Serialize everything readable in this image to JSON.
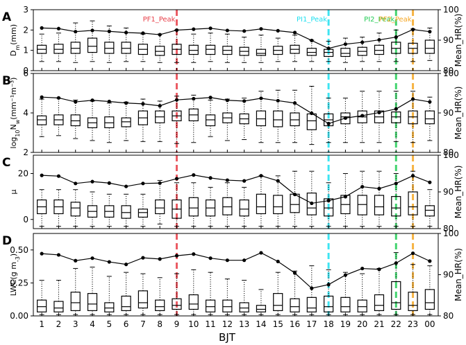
{
  "figure": {
    "xlabel": "BJT",
    "hours": [
      "1",
      "2",
      "3",
      "4",
      "5",
      "6",
      "7",
      "8",
      "9",
      "10",
      "11",
      "12",
      "13",
      "14",
      "15",
      "16",
      "17",
      "18",
      "19",
      "20",
      "21",
      "22",
      "23",
      "00"
    ],
    "right_axis_label": "Mean_HR(%)",
    "peaks": [
      {
        "label": "PF1_Peak",
        "hour_index": 8,
        "color": "#e8404a"
      },
      {
        "label": "PI1_Peak",
        "hour_index": 17,
        "color": "#1ee0f0"
      },
      {
        "label": "PI2_Peak",
        "hour_index": 21,
        "color": "#22cc55"
      },
      {
        "label": "PF2_Peak",
        "hour_index": 22,
        "color": "#f5a623"
      }
    ]
  },
  "chart_data": [
    {
      "type": "box",
      "panel": "A",
      "ylabel_main": "D",
      "ylabel_sub": "m",
      "ylabel_rest": "(mm)",
      "ylim": [
        0,
        3
      ],
      "yticks": [
        0,
        1,
        2,
        3
      ],
      "y2lim": [
        80,
        100
      ],
      "y2ticks": [
        80,
        90,
        100
      ],
      "boxes": [
        {
          "q1": 0.85,
          "median": 1.05,
          "q3": 1.25,
          "low": 0.45,
          "high": 1.8
        },
        {
          "q1": 0.85,
          "median": 1.05,
          "q3": 1.3,
          "low": 0.45,
          "high": 1.85
        },
        {
          "q1": 0.85,
          "median": 1.1,
          "q3": 1.4,
          "low": 0.4,
          "high": 2.35
        },
        {
          "q1": 0.9,
          "median": 1.2,
          "q3": 1.6,
          "low": 0.45,
          "high": 2.45
        },
        {
          "q1": 0.85,
          "median": 1.1,
          "q3": 1.4,
          "low": 0.4,
          "high": 2.2
        },
        {
          "q1": 0.85,
          "median": 1.1,
          "q3": 1.4,
          "low": 0.45,
          "high": 2.1
        },
        {
          "q1": 0.8,
          "median": 1.05,
          "q3": 1.3,
          "low": 0.45,
          "high": 1.8
        },
        {
          "q1": 0.75,
          "median": 0.95,
          "q3": 1.2,
          "low": 0.4,
          "high": 1.8
        },
        {
          "q1": 0.8,
          "median": 1.05,
          "q3": 1.3,
          "low": 0.4,
          "high": 2.0
        },
        {
          "q1": 0.8,
          "median": 1.0,
          "q3": 1.25,
          "low": 0.4,
          "high": 1.8
        },
        {
          "q1": 0.8,
          "median": 1.05,
          "q3": 1.25,
          "low": 0.45,
          "high": 1.85
        },
        {
          "q1": 0.8,
          "median": 1.0,
          "q3": 1.2,
          "low": 0.4,
          "high": 1.8
        },
        {
          "q1": 0.75,
          "median": 0.95,
          "q3": 1.15,
          "low": 0.4,
          "high": 1.65
        },
        {
          "q1": 0.75,
          "median": 0.85,
          "q3": 1.05,
          "low": 0.4,
          "high": 1.75
        },
        {
          "q1": 0.8,
          "median": 1.0,
          "q3": 1.2,
          "low": 0.45,
          "high": 1.6
        },
        {
          "q1": 0.85,
          "median": 1.05,
          "q3": 1.25,
          "low": 0.45,
          "high": 1.75
        },
        {
          "q1": 0.75,
          "median": 0.9,
          "q3": 1.1,
          "low": 0.45,
          "high": 1.5
        },
        {
          "q1": 0.7,
          "median": 0.9,
          "q3": 1.05,
          "low": 0.45,
          "high": 1.45
        },
        {
          "q1": 0.7,
          "median": 0.85,
          "q3": 1.1,
          "low": 0.4,
          "high": 1.6
        },
        {
          "q1": 0.75,
          "median": 0.95,
          "q3": 1.15,
          "low": 0.45,
          "high": 1.65
        },
        {
          "q1": 0.8,
          "median": 1.0,
          "q3": 1.25,
          "low": 0.45,
          "high": 1.85
        },
        {
          "q1": 0.85,
          "median": 1.1,
          "q3": 1.4,
          "low": 0.45,
          "high": 2.0
        },
        {
          "q1": 0.85,
          "median": 1.1,
          "q3": 1.35,
          "low": 0.45,
          "high": 2.05
        },
        {
          "q1": 0.85,
          "median": 1.1,
          "q3": 1.5,
          "low": 0.5,
          "high": 2.1
        }
      ],
      "hr": [
        94,
        93.8,
        92.8,
        93.2,
        92.9,
        92.5,
        92.3,
        91.8,
        93.3,
        93.6,
        93.9,
        93.2,
        93,
        93.7,
        93.1,
        92.5,
        89.9,
        87.3,
        88.7,
        89.3,
        90.1,
        91,
        93.5,
        92.8
      ]
    },
    {
      "type": "box",
      "panel": "B",
      "ylabel_main": "log",
      "ylabel_sub": "10",
      "ylabel_rest": "N",
      "ylabel_sub2": "w",
      "ylabel_tail": "(mm⁻¹m⁻³)",
      "ylim": [
        2,
        6
      ],
      "yticks": [
        2,
        4,
        6
      ],
      "y2lim": [
        80,
        100
      ],
      "y2ticks": [
        80,
        90,
        100
      ],
      "boxes": [
        {
          "q1": 3.4,
          "median": 3.65,
          "q3": 3.85,
          "low": 2.8,
          "high": 4.7
        },
        {
          "q1": 3.4,
          "median": 3.65,
          "q3": 3.9,
          "low": 2.85,
          "high": 4.75
        },
        {
          "q1": 3.35,
          "median": 3.6,
          "q3": 3.9,
          "low": 2.7,
          "high": 4.65
        },
        {
          "q1": 3.25,
          "median": 3.5,
          "q3": 3.75,
          "low": 2.6,
          "high": 4.6
        },
        {
          "q1": 3.25,
          "median": 3.5,
          "q3": 3.8,
          "low": 2.5,
          "high": 4.5
        },
        {
          "q1": 3.3,
          "median": 3.55,
          "q3": 3.75,
          "low": 2.6,
          "high": 4.55
        },
        {
          "q1": 3.4,
          "median": 3.75,
          "q3": 4.1,
          "low": 2.55,
          "high": 4.7
        },
        {
          "q1": 3.5,
          "median": 3.8,
          "q3": 4.1,
          "low": 2.55,
          "high": 4.6
        },
        {
          "q1": 3.6,
          "median": 3.85,
          "q3": 4.1,
          "low": 2.45,
          "high": 4.85
        },
        {
          "q1": 3.6,
          "median": 3.9,
          "q3": 4.2,
          "low": 2.5,
          "high": 4.9
        },
        {
          "q1": 3.35,
          "median": 3.65,
          "q3": 3.9,
          "low": 2.8,
          "high": 4.65
        },
        {
          "q1": 3.5,
          "median": 3.75,
          "q3": 4.0,
          "low": 2.6,
          "high": 4.7
        },
        {
          "q1": 3.45,
          "median": 3.7,
          "q3": 3.95,
          "low": 2.65,
          "high": 4.75
        },
        {
          "q1": 3.35,
          "median": 3.7,
          "q3": 4.1,
          "low": 2.5,
          "high": 5.1
        },
        {
          "q1": 3.3,
          "median": 3.65,
          "q3": 4.1,
          "low": 2.5,
          "high": 5.15
        },
        {
          "q1": 3.35,
          "median": 3.65,
          "q3": 4.0,
          "low": 2.5,
          "high": 5.15
        },
        {
          "q1": 3.15,
          "median": 3.6,
          "q3": 3.95,
          "low": 2.4,
          "high": 5.35
        },
        {
          "q1": 3.35,
          "median": 3.65,
          "q3": 3.95,
          "low": 2.5,
          "high": 4.75
        },
        {
          "q1": 3.45,
          "median": 3.8,
          "q3": 4.0,
          "low": 2.5,
          "high": 4.75
        },
        {
          "q1": 3.5,
          "median": 3.8,
          "q3": 4.1,
          "low": 2.5,
          "high": 5.1
        },
        {
          "q1": 3.5,
          "median": 3.8,
          "q3": 4.1,
          "low": 2.5,
          "high": 5.1
        },
        {
          "q1": 3.5,
          "median": 3.8,
          "q3": 4.05,
          "low": 2.55,
          "high": 5.1
        },
        {
          "q1": 3.45,
          "median": 3.8,
          "q3": 4.1,
          "low": 2.5,
          "high": 5.1
        },
        {
          "q1": 3.45,
          "median": 3.7,
          "q3": 4.1,
          "low": 2.6,
          "high": 4.8
        }
      ],
      "hr": [
        94,
        93.8,
        92.8,
        93.2,
        92.9,
        92.5,
        92.3,
        91.8,
        93.3,
        93.6,
        93.9,
        93.2,
        93,
        93.7,
        93.1,
        92.5,
        89.9,
        87.3,
        88.7,
        89.3,
        90.1,
        91,
        93.5,
        92.8
      ]
    },
    {
      "type": "box",
      "panel": "C",
      "ylabel_main": "μ",
      "ylabel_sub": "",
      "ylabel_rest": "",
      "ylim": [
        -4,
        28
      ],
      "yticks": [
        0,
        20
      ],
      "y2lim": [
        80,
        100
      ],
      "y2ticks": [
        80,
        90,
        100
      ],
      "boxes": [
        {
          "q1": 2.5,
          "median": 5.5,
          "q3": 8.5,
          "low": -3,
          "high": 13
        },
        {
          "q1": 2.5,
          "median": 5.5,
          "q3": 8.5,
          "low": -3,
          "high": 13
        },
        {
          "q1": 1.5,
          "median": 5,
          "q3": 7.5,
          "low": -3,
          "high": 13
        },
        {
          "q1": 1,
          "median": 3.5,
          "q3": 6,
          "low": -3,
          "high": 12
        },
        {
          "q1": 1,
          "median": 3.5,
          "q3": 6,
          "low": -3,
          "high": 11
        },
        {
          "q1": 0.5,
          "median": 3,
          "q3": 6,
          "low": -3,
          "high": 11
        },
        {
          "q1": 1,
          "median": 3,
          "q3": 4.5,
          "low": -3,
          "high": 11
        },
        {
          "q1": 2.5,
          "median": 5,
          "q3": 8.5,
          "low": -2,
          "high": 17
        },
        {
          "q1": 0.5,
          "median": 4.5,
          "q3": 8.5,
          "low": -3,
          "high": 16
        },
        {
          "q1": 1.5,
          "median": 5,
          "q3": 9.5,
          "low": -3,
          "high": 16
        },
        {
          "q1": 1.5,
          "median": 5,
          "q3": 8.5,
          "low": -3,
          "high": 14
        },
        {
          "q1": 2,
          "median": 5.5,
          "q3": 9.5,
          "low": -3,
          "high": 16
        },
        {
          "q1": 1.5,
          "median": 4.5,
          "q3": 8.5,
          "low": -3,
          "high": 14
        },
        {
          "q1": 2.5,
          "median": 5.5,
          "q3": 11,
          "low": -3,
          "high": 19
        },
        {
          "q1": 2.5,
          "median": 5.5,
          "q3": 10.5,
          "low": -3,
          "high": 19
        },
        {
          "q1": 3,
          "median": 6.5,
          "q3": 11,
          "low": -3,
          "high": 21
        },
        {
          "q1": 2,
          "median": 5,
          "q3": 11.5,
          "low": -3,
          "high": 21
        },
        {
          "q1": 1.5,
          "median": 5,
          "q3": 9,
          "low": -3,
          "high": 16
        },
        {
          "q1": 2.5,
          "median": 6.5,
          "q3": 10.5,
          "low": -3,
          "high": 20
        },
        {
          "q1": 2,
          "median": 6.5,
          "q3": 10.5,
          "low": -3,
          "high": 21
        },
        {
          "q1": 2,
          "median": 5.5,
          "q3": 10.5,
          "low": -3,
          "high": 21
        },
        {
          "q1": 1.5,
          "median": 5,
          "q3": 10,
          "low": -3,
          "high": 20
        },
        {
          "q1": 2,
          "median": 5.5,
          "q3": 12,
          "low": -3,
          "high": 21
        },
        {
          "q1": 1.5,
          "median": 4,
          "q3": 6,
          "low": -3,
          "high": 13
        }
      ],
      "hr": [
        94.5,
        94.3,
        92.3,
        92.8,
        92.4,
        91.5,
        92.3,
        92.4,
        93.6,
        94.6,
        93.8,
        93.2,
        93.0,
        94.4,
        93.0,
        89.3,
        86.9,
        87.6,
        88.7,
        91.4,
        90.9,
        92.3,
        94.4,
        92.6
      ]
    },
    {
      "type": "box",
      "panel": "D",
      "ylabel_main": "LWC(g m",
      "ylabel_sub": "-3",
      "ylabel_rest": ")",
      "ylim": [
        0,
        0.625
      ],
      "yticks": [
        0,
        0.25,
        0.5
      ],
      "ytick_labels": [
        "0.00",
        "0.25",
        "0.50"
      ],
      "y2lim": [
        80,
        100
      ],
      "y2ticks": [
        80,
        90,
        100
      ],
      "boxes": [
        {
          "q1": 0.03,
          "median": 0.07,
          "q3": 0.12,
          "low": 0.01,
          "high": 0.27
        },
        {
          "q1": 0.03,
          "median": 0.06,
          "q3": 0.11,
          "low": 0.01,
          "high": 0.27
        },
        {
          "q1": 0.04,
          "median": 0.1,
          "q3": 0.18,
          "low": 0.01,
          "high": 0.36
        },
        {
          "q1": 0.04,
          "median": 0.09,
          "q3": 0.17,
          "low": 0.01,
          "high": 0.37
        },
        {
          "q1": 0.03,
          "median": 0.06,
          "q3": 0.1,
          "low": 0.01,
          "high": 0.3
        },
        {
          "q1": 0.04,
          "median": 0.07,
          "q3": 0.15,
          "low": 0.01,
          "high": 0.33
        },
        {
          "q1": 0.06,
          "median": 0.1,
          "q3": 0.19,
          "low": 0.01,
          "high": 0.32
        },
        {
          "q1": 0.04,
          "median": 0.07,
          "q3": 0.12,
          "low": 0.01,
          "high": 0.29
        },
        {
          "q1": 0.05,
          "median": 0.08,
          "q3": 0.13,
          "low": 0.01,
          "high": 0.32
        },
        {
          "q1": 0.05,
          "median": 0.09,
          "q3": 0.16,
          "low": 0.01,
          "high": 0.35
        },
        {
          "q1": 0.03,
          "median": 0.07,
          "q3": 0.12,
          "low": 0.01,
          "high": 0.33
        },
        {
          "q1": 0.03,
          "median": 0.07,
          "q3": 0.12,
          "low": 0.01,
          "high": 0.28
        },
        {
          "q1": 0.03,
          "median": 0.06,
          "q3": 0.1,
          "low": 0.01,
          "high": 0.27
        },
        {
          "q1": 0.03,
          "median": 0.05,
          "q3": 0.08,
          "low": 0.01,
          "high": 0.2
        },
        {
          "q1": 0.04,
          "median": 0.08,
          "q3": 0.17,
          "low": 0.01,
          "high": 0.33
        },
        {
          "q1": 0.03,
          "median": 0.07,
          "q3": 0.13,
          "low": 0.01,
          "high": 0.34
        },
        {
          "q1": 0.03,
          "median": 0.06,
          "q3": 0.14,
          "low": 0.01,
          "high": 0.38
        },
        {
          "q1": 0.03,
          "median": 0.07,
          "q3": 0.15,
          "low": 0.01,
          "high": 0.35
        },
        {
          "q1": 0.03,
          "median": 0.07,
          "q3": 0.14,
          "low": 0.01,
          "high": 0.33
        },
        {
          "q1": 0.03,
          "median": 0.07,
          "q3": 0.12,
          "low": 0.01,
          "high": 0.32
        },
        {
          "q1": 0.04,
          "median": 0.08,
          "q3": 0.16,
          "low": 0.01,
          "high": 0.36
        },
        {
          "q1": 0.05,
          "median": 0.1,
          "q3": 0.26,
          "low": 0.01,
          "high": 0.48
        },
        {
          "q1": 0.04,
          "median": 0.08,
          "q3": 0.18,
          "low": 0.01,
          "high": 0.39
        },
        {
          "q1": 0.05,
          "median": 0.1,
          "q3": 0.2,
          "low": 0.01,
          "high": 0.38
        }
      ],
      "hr": [
        95.1,
        94.8,
        93.4,
        94.0,
        93.1,
        92.5,
        94.1,
        93.8,
        94.6,
        95.0,
        94.0,
        93.5,
        93.5,
        95.3,
        93.2,
        90.4,
        86.7,
        87.6,
        89.9,
        91.5,
        91.3,
        92.8,
        95.2,
        93.3
      ]
    }
  ]
}
